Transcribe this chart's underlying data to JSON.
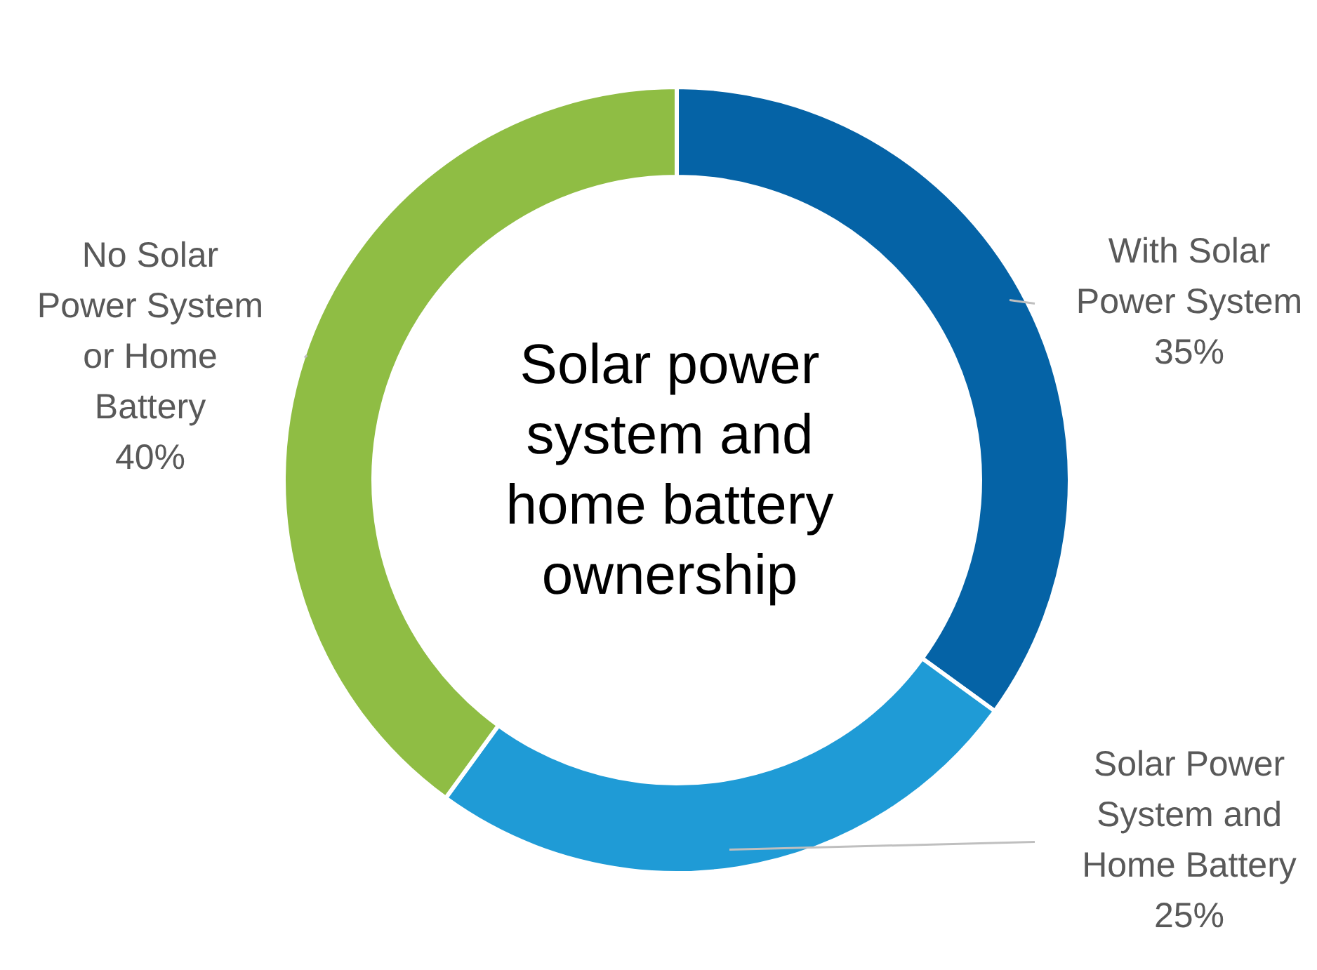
{
  "chart_data": {
    "type": "donut",
    "title": "Solar power system and home battery ownership",
    "categories": [
      "With Solar Power System",
      "Solar Power System and Home Battery",
      "No Solar Power System or Home Battery"
    ],
    "values": [
      35,
      25,
      40
    ],
    "value_labels": [
      "35%",
      "25%",
      "40%"
    ],
    "colors": [
      "#0563a6",
      "#1f9bd6",
      "#8fbd44"
    ]
  }
}
